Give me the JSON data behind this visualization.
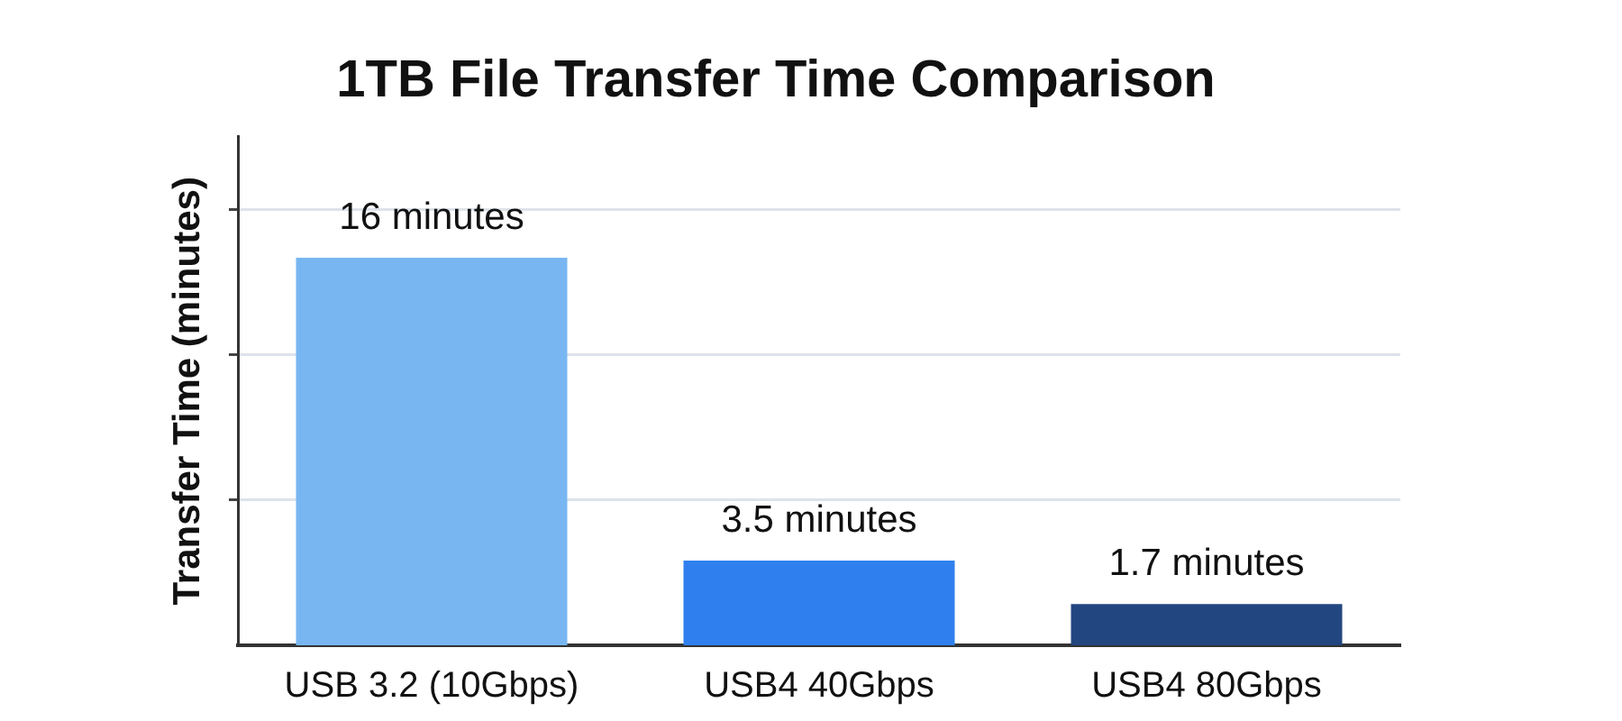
{
  "chart_data": {
    "type": "bar",
    "title": "1TB File Transfer Time Comparison",
    "ylabel": "Transfer Time (minutes)",
    "categories": [
      "USB 3.2 (10Gbps)",
      "USB4 40Gbps",
      "USB4 80Gbps"
    ],
    "values": [
      16,
      3.5,
      1.7
    ],
    "colors": [
      "#78b6f2",
      "#2f80ee",
      "#22467f"
    ],
    "value_labels": [
      "16 minutes",
      "3.5 minutes",
      "1.7 minutes"
    ],
    "ylim": [
      0,
      21
    ],
    "yticks": [
      {
        "value": 6,
        "label": null
      },
      {
        "value": 12,
        "label": null
      },
      {
        "value": 18,
        "label": null
      }
    ],
    "grid": "y",
    "tick_labels": "x"
  }
}
